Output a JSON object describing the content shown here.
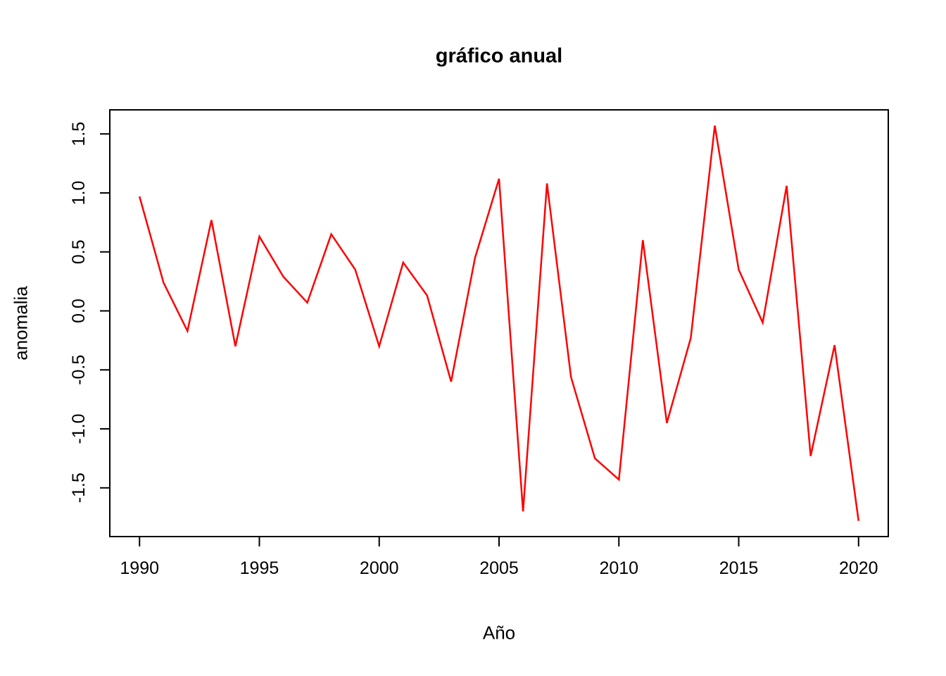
{
  "page": {
    "background": "#ffffff"
  },
  "chart_data": {
    "type": "line",
    "title": "gráfico anual",
    "xlabel": "Año",
    "ylabel": "anomalia",
    "grid": false,
    "legend": false,
    "axis_color": "#000000",
    "text_color": "#000000",
    "xlim": [
      1988.76,
      2021.24
    ],
    "ylim": [
      -1.913,
      1.704
    ],
    "x_ticks": [
      1990,
      1995,
      2000,
      2005,
      2010,
      2015,
      2020
    ],
    "x_tick_labels": [
      "1990",
      "1995",
      "2000",
      "2005",
      "2010",
      "2015",
      "2020"
    ],
    "y_ticks": [
      -1.5,
      -1.0,
      -0.5,
      0.0,
      0.5,
      1.0,
      1.5
    ],
    "y_tick_labels": [
      "-1.5",
      "-1.0",
      "-0.5",
      "0.0",
      "0.5",
      "1.0",
      "1.5"
    ],
    "x": [
      1990,
      1991,
      1992,
      1993,
      1994,
      1995,
      1996,
      1997,
      1998,
      1999,
      2000,
      2001,
      2002,
      2003,
      2004,
      2005,
      2006,
      2007,
      2008,
      2009,
      2010,
      2011,
      2012,
      2013,
      2014,
      2015,
      2016,
      2017,
      2018,
      2019,
      2020
    ],
    "series": [
      {
        "name": "anomalia",
        "color": "#ff0000",
        "values": [
          0.97,
          0.24,
          -0.17,
          0.77,
          -0.3,
          0.63,
          0.29,
          0.07,
          0.65,
          0.35,
          -0.3,
          0.41,
          0.13,
          -0.6,
          0.45,
          1.12,
          -1.7,
          1.08,
          -0.56,
          -1.25,
          -1.43,
          0.6,
          -0.95,
          -0.23,
          1.57,
          0.35,
          -0.1,
          1.06,
          -1.23,
          -0.29,
          -1.78
        ]
      }
    ]
  }
}
